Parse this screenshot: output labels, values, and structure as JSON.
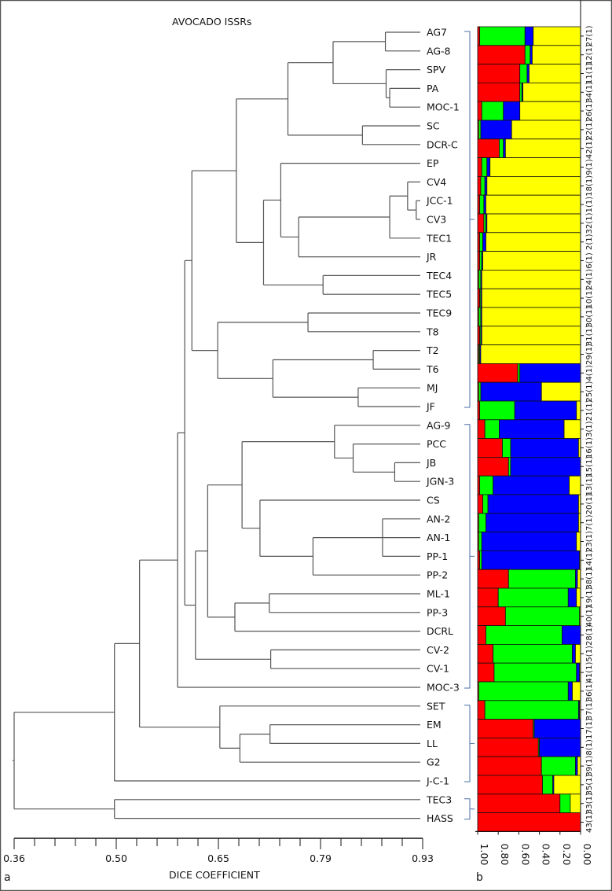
{
  "chart_data": [
    {
      "type": "dendrogram",
      "title": "AVOCADO ISSRs",
      "panel_label": "a",
      "xlabel": "DICE COEFFICIENT",
      "xlim": [
        0.36,
        0.93
      ],
      "xticks": [
        "0.36",
        "0.50",
        "0.65",
        "0.79",
        "0.93"
      ],
      "line_color": "#555555",
      "bracket_color": "#4a6fa5",
      "groups": [
        [
          "AG7",
          "JF"
        ],
        [
          "AG-9",
          "MOC-3"
        ],
        [
          "SET",
          "J-C-1"
        ],
        [
          "TEC3",
          "HASS"
        ]
      ],
      "tree": {
        "h": 0.36,
        "c": [
          {
            "h": 0.5,
            "c": [
              {
                "h": 0.535,
                "c": [
                  {
                    "h": 0.588,
                    "c": [
                      {
                        "h": 0.598,
                        "c": [
                          {
                            "h": 0.608,
                            "c": [
                              {
                                "h": 0.67,
                                "c": [
                                  {
                                    "h": 0.742,
                                    "c": [
                                      {
                                        "h": 0.805,
                                        "c": [
                                          {
                                            "h": 0.878,
                                            "c": [
                                              "AG7",
                                              "AG-8"
                                            ]
                                          },
                                          {
                                            "h": 0.879,
                                            "c": [
                                              "SPV",
                                              {
                                                "h": 0.884,
                                                "c": [
                                                  "PA",
                                                  "MOC-1"
                                                ]
                                              }
                                            ]
                                          }
                                        ]
                                      },
                                      {
                                        "h": 0.846,
                                        "c": [
                                          "SC",
                                          "DCR-C"
                                        ]
                                      }
                                    ]
                                  },
                                  {
                                    "h": 0.708,
                                    "c": [
                                      {
                                        "h": 0.732,
                                        "c": [
                                          "EP",
                                          {
                                            "h": 0.757,
                                            "c": [
                                              {
                                                "h": 0.884,
                                                "c": [
                                                  {
                                                    "h": 0.909,
                                                    "c": [
                                                      "CV4",
                                                      {
                                                        "h": 0.921,
                                                        "c": [
                                                          "JCC-1",
                                                          "CV3"
                                                        ]
                                                      }
                                                    ]
                                                  },
                                                  "TEC1"
                                                ]
                                              },
                                              "JR"
                                            ]
                                          }
                                        ]
                                      },
                                      {
                                        "h": 0.791,
                                        "c": [
                                          "TEC4",
                                          "TEC5"
                                        ]
                                      }
                                    ]
                                  }
                                ]
                              },
                              {
                                "h": 0.644,
                                "c": [
                                  {
                                    "h": 0.77,
                                    "c": [
                                      "TEC9",
                                      "T8"
                                    ]
                                  },
                                  {
                                    "h": 0.721,
                                    "c": [
                                      {
                                        "h": 0.861,
                                        "c": [
                                          "T2",
                                          "T6"
                                        ]
                                      },
                                      {
                                        "h": 0.84,
                                        "c": [
                                          "MJ",
                                          "JF"
                                        ]
                                      }
                                    ]
                                  }
                                ]
                              }
                            ]
                          },
                          {
                            "h": 0.613,
                            "c": [
                              {
                                "h": 0.63,
                                "c": [
                                  {
                                    "h": 0.678,
                                    "c": [
                                      {
                                        "h": 0.807,
                                        "c": [
                                          "AG-9",
                                          {
                                            "h": 0.833,
                                            "c": [
                                              "PCC",
                                              {
                                                "h": 0.891,
                                                "c": [
                                                  "JB",
                                                  "JGN-3"
                                                ]
                                              }
                                            ]
                                          }
                                        ]
                                      },
                                      {
                                        "h": 0.703,
                                        "c": [
                                          "CS",
                                          {
                                            "h": 0.777,
                                            "c": [
                                              {
                                                "h": 0.874,
                                                "c": [
                                                  "AN-2",
                                                  "AN-1",
                                                  "PP-1"
                                                ]
                                              },
                                              "PP-2"
                                            ]
                                          }
                                        ]
                                      }
                                    ]
                                  },
                                  {
                                    "h": 0.668,
                                    "c": [
                                      {
                                        "h": 0.716,
                                        "c": [
                                          "ML-1",
                                          "PP-3"
                                        ]
                                      },
                                      "DCRL"
                                    ]
                                  }
                                ]
                              },
                              {
                                "h": 0.718,
                                "c": [
                                  "CV-2",
                                  "CV-1"
                                ]
                              }
                            ]
                          }
                        ]
                      },
                      "MOC-3"
                    ]
                  },
                  {
                    "h": 0.647,
                    "c": [
                      "SET",
                      {
                        "h": 0.675,
                        "c": [
                          {
                            "h": 0.717,
                            "c": [
                              "EM",
                              "LL"
                            ]
                          },
                          "G2"
                        ]
                      }
                    ]
                  }
                ]
              },
              "J-C-1"
            ]
          },
          {
            "h": 0.5,
            "c": [
              "TEC3",
              "HASS"
            ]
          }
        ]
      }
    },
    {
      "type": "stacked_bar",
      "panel_label": "b",
      "orientation": "horizontal",
      "xlim": [
        1.0,
        0.0
      ],
      "xticks": [
        "1.00",
        "0.80",
        "0.60",
        "0.40",
        "0.20",
        "0.00"
      ],
      "colors": [
        "#ff0000",
        "#00ff00",
        "#0000ff",
        "#ffff00"
      ],
      "rows": [
        {
          "label": "27(1)",
          "values": [
            0.02,
            0.44,
            0.08,
            0.46
          ]
        },
        {
          "label": "12(1)",
          "values": [
            0.46,
            0.05,
            0.02,
            0.47
          ]
        },
        {
          "label": "11(1)",
          "values": [
            0.41,
            0.07,
            0.02,
            0.5
          ]
        },
        {
          "label": "34(1)",
          "values": [
            0.41,
            0.02,
            0.01,
            0.56
          ]
        },
        {
          "label": "26(1)",
          "values": [
            0.04,
            0.21,
            0.16,
            0.59
          ]
        },
        {
          "label": "22(1)",
          "values": [
            0.01,
            0.02,
            0.3,
            0.67
          ]
        },
        {
          "label": "42(1)",
          "values": [
            0.21,
            0.04,
            0.02,
            0.73
          ]
        },
        {
          "label": "9(1)",
          "values": [
            0.04,
            0.05,
            0.03,
            0.88
          ]
        },
        {
          "label": "18(1)",
          "values": [
            0.03,
            0.04,
            0.02,
            0.91
          ]
        },
        {
          "label": "1(1)",
          "values": [
            0.02,
            0.04,
            0.02,
            0.92
          ]
        },
        {
          "label": "32(1)",
          "values": [
            0.06,
            0.02,
            0.01,
            0.91
          ]
        },
        {
          "label": "2(1)",
          "values": [
            0.02,
            0.03,
            0.03,
            0.92
          ]
        },
        {
          "label": "6(1)",
          "values": [
            0.02,
            0.02,
            0.01,
            0.95
          ]
        },
        {
          "label": "24(1)",
          "values": [
            0.01,
            0.02,
            0.01,
            0.96
          ]
        },
        {
          "label": "10(1)",
          "values": [
            0.02,
            0.01,
            0.01,
            0.96
          ]
        },
        {
          "label": "30(1)",
          "values": [
            0.01,
            0.02,
            0.01,
            0.96
          ]
        },
        {
          "label": "31(1)",
          "values": [
            0.02,
            0.01,
            0.01,
            0.96
          ]
        },
        {
          "label": "29(1)",
          "values": [
            0.01,
            0.01,
            0.01,
            0.97
          ]
        },
        {
          "label": "4(1)",
          "values": [
            0.39,
            0.02,
            0.59,
            0.0
          ]
        },
        {
          "label": "25(1)",
          "values": [
            0.01,
            0.02,
            0.59,
            0.38
          ]
        },
        {
          "label": "21(1)",
          "values": [
            0.02,
            0.34,
            0.6,
            0.04
          ]
        },
        {
          "label": "3(1)",
          "values": [
            0.07,
            0.14,
            0.63,
            0.16
          ]
        },
        {
          "label": "16(1)",
          "values": [
            0.24,
            0.08,
            0.66,
            0.02
          ]
        },
        {
          "label": "15(1)",
          "values": [
            0.3,
            0.02,
            0.68,
            0.0
          ]
        },
        {
          "label": "13(1)",
          "values": [
            0.02,
            0.13,
            0.74,
            0.11
          ]
        },
        {
          "label": "20(1)",
          "values": [
            0.05,
            0.05,
            0.88,
            0.02
          ]
        },
        {
          "label": "7(1)",
          "values": [
            0.01,
            0.07,
            0.9,
            0.02
          ]
        },
        {
          "label": "23(1)",
          "values": [
            0.01,
            0.03,
            0.92,
            0.04
          ]
        },
        {
          "label": "14(1)",
          "values": [
            0.02,
            0.02,
            0.95,
            0.01
          ]
        },
        {
          "label": "38(1)",
          "values": [
            0.3,
            0.65,
            0.02,
            0.03
          ]
        },
        {
          "label": "19(1)",
          "values": [
            0.2,
            0.68,
            0.08,
            0.04
          ]
        },
        {
          "label": "40(1)",
          "values": [
            0.27,
            0.72,
            0.0,
            0.01
          ]
        },
        {
          "label": "28(1)",
          "values": [
            0.08,
            0.74,
            0.18,
            0.0
          ]
        },
        {
          "label": "5(1)",
          "values": [
            0.15,
            0.77,
            0.03,
            0.05
          ]
        },
        {
          "label": "41(1)",
          "values": [
            0.16,
            0.8,
            0.03,
            0.01
          ]
        },
        {
          "label": "36(1)",
          "values": [
            0.01,
            0.87,
            0.04,
            0.08
          ]
        },
        {
          "label": "37(1)",
          "values": [
            0.07,
            0.91,
            0.01,
            0.01
          ]
        },
        {
          "label": "17(1)",
          "values": [
            0.54,
            0.01,
            0.45,
            0.0
          ]
        },
        {
          "label": "8(1)",
          "values": [
            0.59,
            0.01,
            0.4,
            0.0
          ]
        },
        {
          "label": "39(1)",
          "values": [
            0.62,
            0.33,
            0.02,
            0.03
          ]
        },
        {
          "label": "35(1)",
          "values": [
            0.63,
            0.1,
            0.01,
            0.26
          ]
        },
        {
          "label": "33(1)",
          "values": [
            0.8,
            0.1,
            0.0,
            0.1
          ]
        },
        {
          "label": "43(1)",
          "values": [
            1.0,
            0.0,
            0.0,
            0.0
          ]
        }
      ]
    }
  ]
}
